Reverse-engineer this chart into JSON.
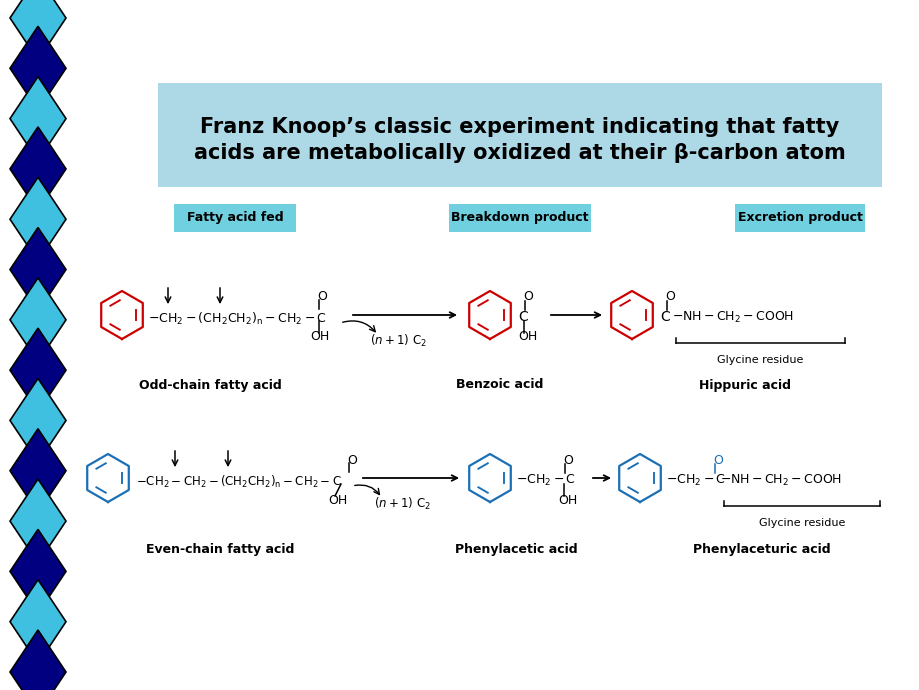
{
  "title_line1": "Franz Knoop’s classic experiment indicating that fatty",
  "title_line2": "acids are metabolically oxidized at their β-carbon atom",
  "title_bg": "#add8e6",
  "bg_color": "#ffffff",
  "diamond_colors_even": "#40c0e0",
  "diamond_colors_odd": "#000080",
  "label1": "Fatty acid fed",
  "label2": "Breakdown product",
  "label3": "Excretion product",
  "label_bg": "#70d0e0",
  "odd_label": "Odd-chain fatty acid",
  "even_label": "Even-chain fatty acid",
  "benzoic_label": "Benzoic acid",
  "phenylacetic_label": "Phenylacetic acid",
  "hippuric_label": "Hippuric acid",
  "phenylaceturic_label": "Phenylaceturic acid",
  "red_color": "#cc0000",
  "blue_color": "#1a6fb5"
}
